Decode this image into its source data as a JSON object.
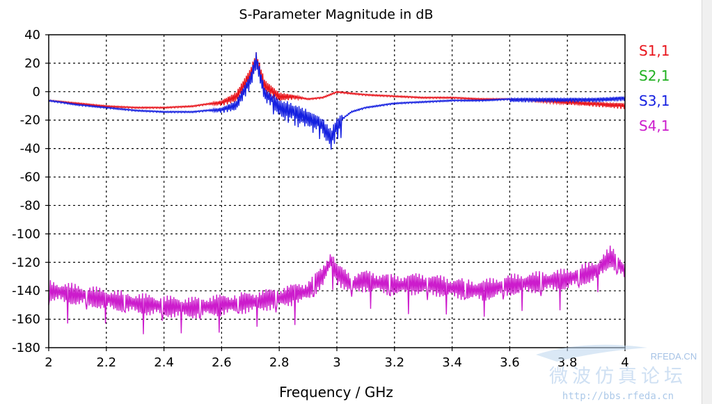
{
  "chart_data": {
    "type": "line",
    "title": "S-Parameter Magnitude in dB",
    "xlabel": "Frequency / GHz",
    "ylabel": "",
    "xlim": [
      2,
      4
    ],
    "ylim": [
      -180,
      40
    ],
    "xticks": [
      "2",
      "2.2",
      "2.4",
      "2.6",
      "2.8",
      "3",
      "3.2",
      "3.4",
      "3.6",
      "3.8",
      "4"
    ],
    "yticks": [
      "40",
      "20",
      "0",
      "-20",
      "-40",
      "-60",
      "-80",
      "-100",
      "-120",
      "-140",
      "-160",
      "-180"
    ],
    "grid": true,
    "legend_position": "right",
    "series": [
      {
        "name": "S1,1",
        "color": "#e8141b",
        "x": [
          2.0,
          2.1,
          2.2,
          2.3,
          2.4,
          2.5,
          2.6,
          2.65,
          2.7,
          2.72,
          2.75,
          2.8,
          2.85,
          2.9,
          2.95,
          3.0,
          3.05,
          3.1,
          3.2,
          3.3,
          3.4,
          3.5,
          3.6,
          3.7,
          3.8,
          3.9,
          4.0
        ],
        "values": [
          -6,
          -8,
          -10,
          -11,
          -11,
          -10,
          -7,
          -2,
          14,
          25,
          6,
          -2,
          -3,
          -5,
          -4,
          0,
          -1,
          -2,
          -3,
          -4,
          -4,
          -5,
          -5,
          -6,
          -7,
          -8,
          -9
        ]
      },
      {
        "name": "S2,1",
        "color": "#20b020",
        "x": [],
        "values": []
      },
      {
        "name": "S3,1",
        "color": "#1520e0",
        "x": [
          2.0,
          2.1,
          2.2,
          2.3,
          2.4,
          2.5,
          2.6,
          2.65,
          2.7,
          2.72,
          2.75,
          2.8,
          2.85,
          2.9,
          2.95,
          2.98,
          3.0,
          3.05,
          3.1,
          3.2,
          3.3,
          3.4,
          3.5,
          3.6,
          3.7,
          3.8,
          3.9,
          4.0
        ],
        "values": [
          -6,
          -9,
          -11,
          -13,
          -14,
          -14,
          -12,
          -8,
          10,
          25,
          0,
          -8,
          -12,
          -16,
          -22,
          -30,
          -22,
          -14,
          -11,
          -8,
          -7,
          -6,
          -6,
          -5,
          -5,
          -5,
          -5,
          -4
        ]
      },
      {
        "name": "S4,1",
        "color": "#cc1ccc",
        "x": [
          2.0,
          2.1,
          2.2,
          2.3,
          2.4,
          2.5,
          2.6,
          2.7,
          2.8,
          2.9,
          2.95,
          2.98,
          3.0,
          3.05,
          3.1,
          3.2,
          3.3,
          3.4,
          3.5,
          3.6,
          3.7,
          3.8,
          3.9,
          3.95,
          4.0
        ],
        "values": [
          -140,
          -143,
          -146,
          -149,
          -151,
          -152,
          -150,
          -148,
          -145,
          -140,
          -130,
          -118,
          -128,
          -135,
          -133,
          -136,
          -135,
          -138,
          -140,
          -136,
          -134,
          -132,
          -126,
          -116,
          -126
        ]
      }
    ]
  },
  "watermark": {
    "site_tag": "RFEDA.CN",
    "forum_name": "微波仿真论坛",
    "url": "http://bbs.rfeda.cn"
  }
}
